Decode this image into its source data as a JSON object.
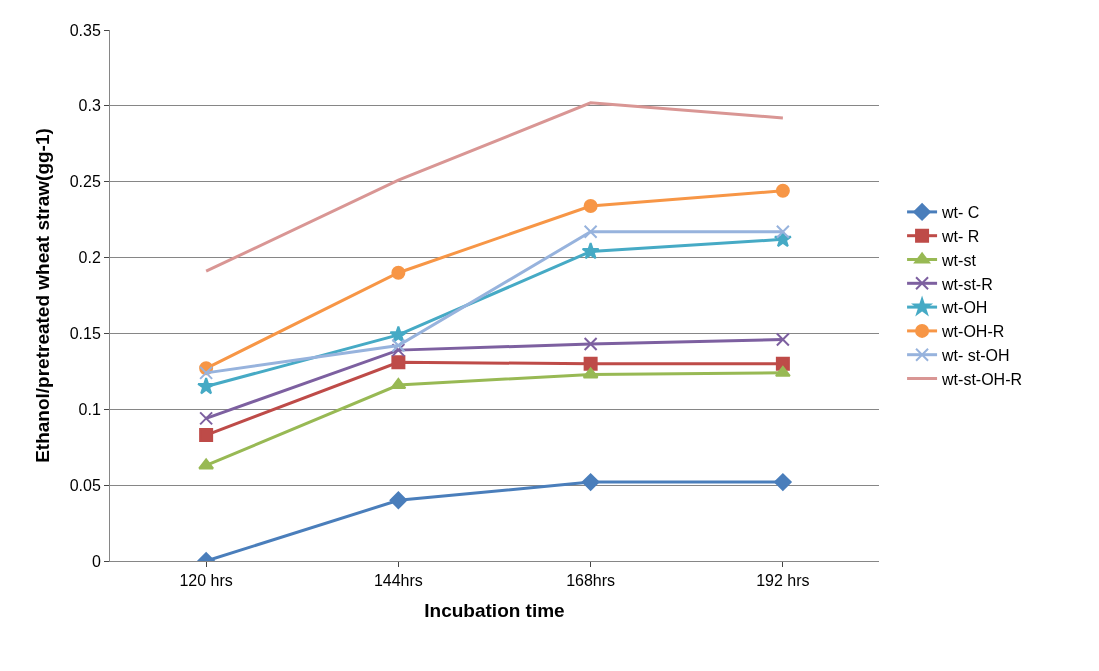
{
  "chart_data": {
    "type": "line",
    "xlabel": "Incubation time",
    "ylabel": "Ethanol/pretreated wheat straw(gg-1)",
    "categories": [
      "120 hrs",
      "144hrs",
      "168hrs",
      "192 hrs"
    ],
    "ylim": [
      0,
      0.35
    ],
    "yticks": [
      0,
      0.05,
      0.1,
      0.15,
      0.2,
      0.25,
      0.3,
      0.35
    ],
    "grid": "y",
    "legend": "right",
    "series": [
      {
        "name": "wt- C",
        "color": "#4a7ebb",
        "marker": "diamond",
        "values": [
          0,
          0.04,
          0.052,
          0.052
        ]
      },
      {
        "name": "wt- R",
        "color": "#be4b48",
        "marker": "square",
        "values": [
          0.083,
          0.131,
          0.13,
          0.13
        ]
      },
      {
        "name": "wt-st",
        "color": "#98b954",
        "marker": "triangle",
        "values": [
          0.063,
          0.116,
          0.123,
          0.124
        ]
      },
      {
        "name": "wt-st-R",
        "color": "#7d60a0",
        "marker": "cross",
        "values": [
          0.094,
          0.139,
          0.143,
          0.146
        ]
      },
      {
        "name": "wt-OH",
        "color": "#46aac5",
        "marker": "star",
        "values": [
          0.115,
          0.149,
          0.204,
          0.212
        ]
      },
      {
        "name": "wt-OH-R",
        "color": "#f79646",
        "marker": "circle",
        "values": [
          0.127,
          0.19,
          0.234,
          0.244
        ]
      },
      {
        "name": "wt- st-OH",
        "color": "#97b3dd",
        "marker": "cross",
        "values": [
          0.124,
          0.142,
          0.217,
          0.217
        ]
      },
      {
        "name": "wt-st-OH-R",
        "color": "#d99694",
        "marker": "none",
        "values": [
          0.191,
          0.251,
          0.302,
          0.292
        ]
      }
    ]
  }
}
